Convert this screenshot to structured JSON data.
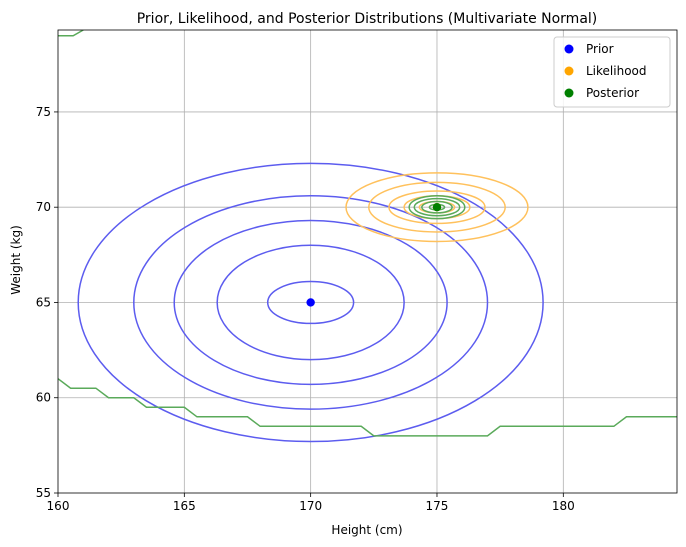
{
  "chart_data": {
    "type": "contour",
    "title": "Prior, Likelihood, and Posterior Distributions (Multivariate Normal)",
    "xlabel": "Height (cm)",
    "ylabel": "Weight (kg)",
    "xlim": [
      160,
      184.5
    ],
    "ylim": [
      55,
      79.3
    ],
    "xticks": [
      160,
      165,
      170,
      175,
      180
    ],
    "yticks": [
      55,
      60,
      65,
      70,
      75
    ],
    "grid": true,
    "legend_position": "top-right",
    "series": [
      {
        "name": "Prior",
        "color": "#0000ff",
        "contour_color": "#5c5cef",
        "mean": [
          170,
          65
        ],
        "contours": [
          {
            "rx": 1.7,
            "ry": 1.1
          },
          {
            "rx": 3.7,
            "ry": 3.0
          },
          {
            "rx": 5.4,
            "ry": 4.3
          },
          {
            "rx": 7.0,
            "ry": 5.6
          },
          {
            "rx": 9.2,
            "ry": 7.3
          }
        ]
      },
      {
        "name": "Likelihood",
        "color": "#ffa500",
        "contour_color": "#ffc15c",
        "mean": [
          175,
          70
        ],
        "contours": [
          {
            "rx": 0.7,
            "ry": 0.3
          },
          {
            "rx": 1.3,
            "ry": 0.6
          },
          {
            "rx": 1.9,
            "ry": 0.85
          },
          {
            "rx": 2.7,
            "ry": 1.3
          },
          {
            "rx": 3.6,
            "ry": 1.8
          }
        ]
      },
      {
        "name": "Posterior",
        "color": "#008000",
        "contour_color": "#5aaa5a",
        "mean": [
          175,
          70
        ],
        "contours": [
          {
            "rx": 0.3,
            "ry": 0.15
          },
          {
            "rx": 0.6,
            "ry": 0.3
          },
          {
            "rx": 0.9,
            "ry": 0.45
          },
          {
            "rx": 1.1,
            "ry": 0.6
          }
        ],
        "edge_contours": [
          [
            [
              160,
              79.0
            ],
            [
              160.6,
              79.0
            ],
            [
              161,
              79.3
            ]
          ],
          [
            [
              160,
              61.0
            ],
            [
              160.5,
              60.5
            ],
            [
              161.5,
              60.5
            ],
            [
              162,
              60.0
            ],
            [
              163,
              60.0
            ],
            [
              163.5,
              59.5
            ],
            [
              165,
              59.5
            ],
            [
              165.5,
              59.0
            ],
            [
              167.5,
              59.0
            ],
            [
              168,
              58.5
            ],
            [
              172,
              58.5
            ],
            [
              172.5,
              58.0
            ],
            [
              177,
              58.0
            ],
            [
              177.5,
              58.5
            ],
            [
              182,
              58.5
            ],
            [
              182.5,
              59.0
            ],
            [
              184.5,
              59.0
            ]
          ]
        ]
      }
    ]
  }
}
